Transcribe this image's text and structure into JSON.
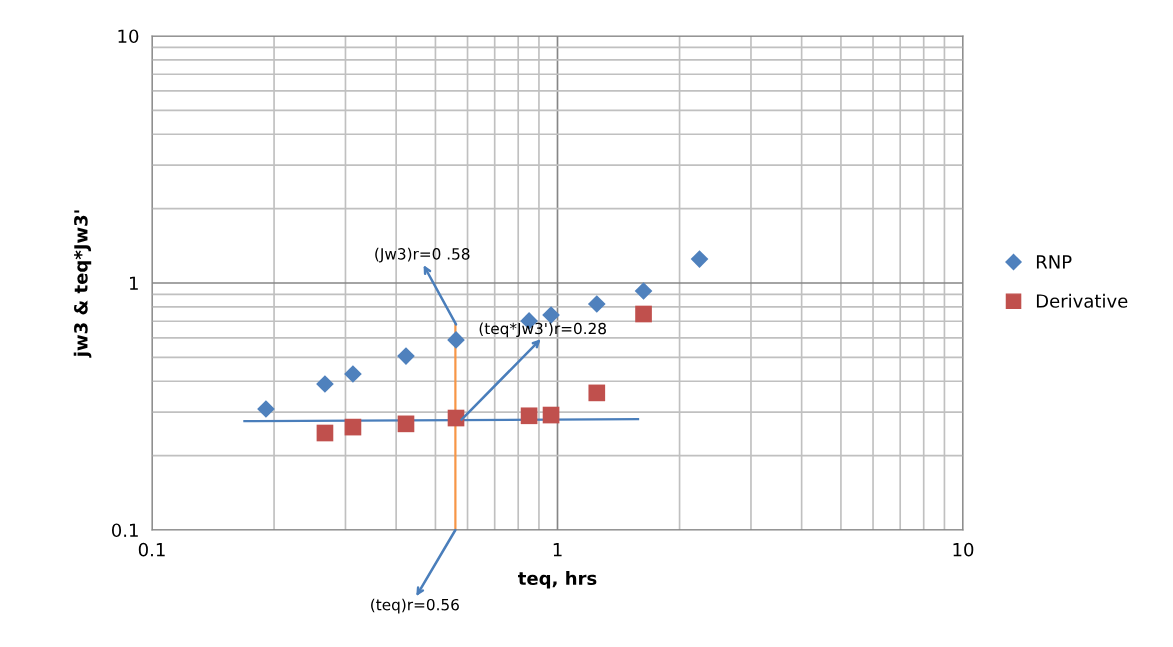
{
  "chart_data": {
    "type": "scatter",
    "xlabel": "teq, hrs",
    "ylabel": "jw3 & teq*Jw3'",
    "log": "xy",
    "grid": true,
    "legend": "right",
    "xlim": [
      0.1,
      10
    ],
    "xticks": [
      0.1,
      1,
      10
    ],
    "ylim": [
      0.1,
      10
    ],
    "yticks": [
      0.1,
      1,
      10
    ],
    "series": [
      {
        "name": "RNP",
        "color": "#4f81bd",
        "marker": "diamond",
        "x": [
          0.191,
          0.267,
          0.313,
          0.423,
          0.562,
          0.851,
          0.964,
          1.25,
          1.63,
          2.24
        ],
        "values": [
          0.309,
          0.39,
          0.428,
          0.506,
          0.588,
          0.702,
          0.742,
          0.822,
          0.928,
          1.25
        ]
      },
      {
        "name": "Derivative",
        "color": "#c0504d",
        "marker": "square",
        "x": [
          0.267,
          0.313,
          0.423,
          0.562,
          0.851,
          0.964,
          1.25,
          1.63
        ],
        "values": [
          0.247,
          0.261,
          0.269,
          0.284,
          0.29,
          0.292,
          0.359,
          0.749
        ]
      },
      {
        "type": "line",
        "color": "#4a7ebb",
        "marker": "none",
        "x": [
          0.169,
          1.58
        ],
        "values": [
          0.276,
          0.281
        ]
      },
      {
        "type": "line",
        "color": "#f79646",
        "marker": "none",
        "x": [
          0.56,
          0.56
        ],
        "values": [
          0.1,
          0.68
        ]
      }
    ],
    "annotations": [
      {
        "text": "(Jw3)r=0 .58",
        "x": 0.562,
        "y": 0.68
      },
      {
        "text": "(teq*Jw3')r=0.28",
        "x": 0.58,
        "y": 0.28
      },
      {
        "text": "(teq)r=0.56",
        "x": 0.56,
        "y": 0.1
      }
    ]
  }
}
